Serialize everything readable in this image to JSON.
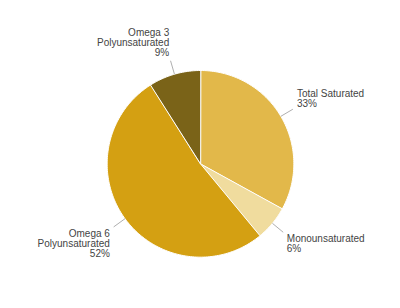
{
  "chart_data": {
    "type": "pie",
    "categories": [
      "Total Saturated",
      "Monounsaturated",
      "Omega 6\nPolyunsaturated",
      "Omega 3\nPolyunsaturated"
    ],
    "values": [
      33,
      6,
      52,
      9
    ],
    "value_labels": [
      "33%",
      "6%",
      "52%",
      "9%"
    ],
    "colors": [
      "#E2B84A",
      "#F0DC9E",
      "#D4A012",
      "#7A6318"
    ],
    "data_labels": true
  }
}
